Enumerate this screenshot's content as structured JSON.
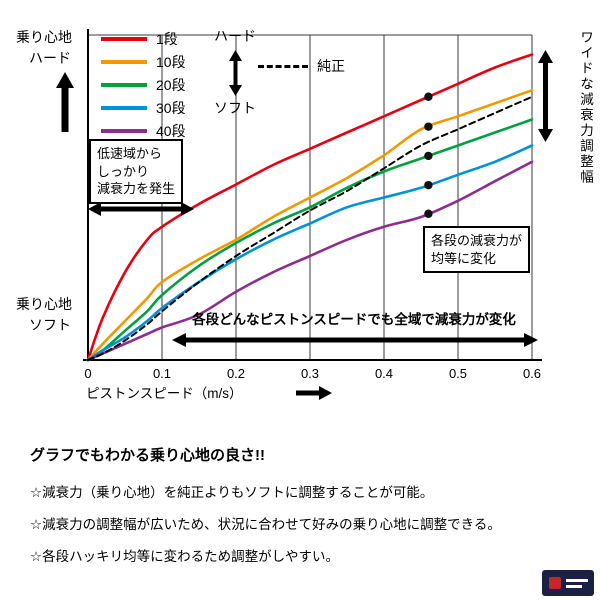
{
  "chart": {
    "y_top": {
      "line1": "乗り心地",
      "line2": "ハード"
    },
    "y_bottom": {
      "line1": "乗り心地",
      "line2": "ソフト"
    },
    "x_axis_label": "ピストンスピード（m/s）",
    "right_axis_label": "ワイドな減衰力調整幅",
    "legend": {
      "hard": "ハード",
      "soft": "ソフト"
    },
    "annotations": {
      "low_speed_line1": "低速域から",
      "low_speed_line2": "しっかり",
      "low_speed_line3": "減衰力を発生",
      "equal_line1": "各段の減衰力が",
      "equal_line2": "均等に変化",
      "full_range": "各段どんなピストンスピードでも全域で減衰力が変化"
    }
  },
  "chart_data": {
    "type": "line",
    "title": "",
    "xlabel": "ピストンスピード（m/s）",
    "ylabel": "",
    "xlim": [
      0,
      0.6
    ],
    "ylim": [
      0,
      1
    ],
    "grid": "vertical",
    "x_ticks": [
      0,
      0.1,
      0.2,
      0.3,
      0.4,
      0.5,
      0.6
    ],
    "x_tick_labels": [
      "0",
      "0.1",
      "0.2",
      "0.3",
      "0.4",
      "0.5",
      "0.6"
    ],
    "x": [
      0,
      0.02,
      0.05,
      0.08,
      0.1,
      0.15,
      0.2,
      0.25,
      0.3,
      0.35,
      0.4,
      0.45,
      0.5,
      0.55,
      0.6
    ],
    "dot_x": 0.46,
    "series": [
      {
        "name": "1段",
        "color": "#e60012",
        "dash": false,
        "dot": true,
        "values": [
          0,
          0.13,
          0.27,
          0.37,
          0.41,
          0.48,
          0.54,
          0.6,
          0.65,
          0.7,
          0.75,
          0.8,
          0.85,
          0.9,
          0.94
        ]
      },
      {
        "name": "10段",
        "color": "#f39800",
        "dash": false,
        "dot": true,
        "values": [
          0,
          0.05,
          0.12,
          0.19,
          0.24,
          0.31,
          0.37,
          0.44,
          0.5,
          0.56,
          0.63,
          0.71,
          0.75,
          0.79,
          0.83
        ]
      },
      {
        "name": "20段",
        "color": "#00a040",
        "dash": false,
        "dot": true,
        "values": [
          0,
          0.03,
          0.09,
          0.15,
          0.2,
          0.29,
          0.36,
          0.42,
          0.47,
          0.53,
          0.58,
          0.62,
          0.66,
          0.7,
          0.74
        ]
      },
      {
        "name": "30段",
        "color": "#0092d6",
        "dash": false,
        "dot": true,
        "values": [
          0,
          0.03,
          0.07,
          0.12,
          0.16,
          0.24,
          0.31,
          0.37,
          0.42,
          0.47,
          0.5,
          0.53,
          0.57,
          0.61,
          0.66
        ]
      },
      {
        "name": "40段",
        "color": "#8b2e8f",
        "dash": false,
        "dot": true,
        "values": [
          0,
          0.02,
          0.05,
          0.08,
          0.1,
          0.14,
          0.21,
          0.27,
          0.32,
          0.37,
          0.41,
          0.44,
          0.49,
          0.55,
          0.61
        ]
      },
      {
        "name": "純正",
        "color": "#000000",
        "dash": true,
        "dot": false,
        "values": [
          0,
          0.02,
          0.06,
          0.11,
          0.15,
          0.24,
          0.32,
          0.39,
          0.46,
          0.52,
          0.59,
          0.66,
          0.71,
          0.76,
          0.81
        ]
      }
    ]
  },
  "footer": {
    "title": "グラフでもわかる乗り心地の良さ!!",
    "bullets": [
      "☆減衰力（乗り心地）を純正よりもソフトに調整することが可能。",
      "☆減衰力の調整幅が広いため、状況に合わせて好みの乗り心地に調整できる。",
      "☆各段ハッキリ均等に変わるため調整がしやすい。"
    ]
  }
}
